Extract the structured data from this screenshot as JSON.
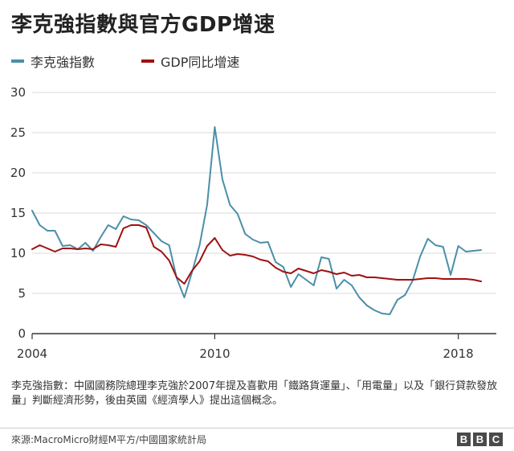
{
  "title": "李克強指數與官方GDP增速",
  "note": "李克強指數：中國國務院總理李克強於2007年提及喜歡用「鐵路貨運量」、「用電量」以及「銀行貸款發放量」判斷經濟形勢，後由英國《經濟學人》提出這個概念。",
  "source": "來源:MacroMicro財經M平方/中國國家統計局",
  "logo": [
    "B",
    "B",
    "C"
  ],
  "colors": {
    "li_index": "#4a8fa8",
    "gdp": "#a01010"
  },
  "chart_data": {
    "type": "line",
    "title": "李克強指數與官方GDP增速",
    "xlabel": "",
    "ylabel": "",
    "xlim": [
      2004,
      2019.25
    ],
    "ylim": [
      0,
      30
    ],
    "yticks": [
      0,
      5,
      10,
      15,
      20,
      25,
      30
    ],
    "xticks": [
      2004,
      2010,
      2018
    ],
    "xtick_labels": [
      "2004",
      "2010",
      "2018"
    ],
    "grid": true,
    "legend": "top-left",
    "series": [
      {
        "name": "李克強指數",
        "color": "#4a8fa8",
        "x": [
          2004.0,
          2004.25,
          2004.5,
          2004.75,
          2005.0,
          2005.25,
          2005.5,
          2005.75,
          2006.0,
          2006.25,
          2006.5,
          2006.75,
          2007.0,
          2007.25,
          2007.5,
          2007.75,
          2008.0,
          2008.25,
          2008.5,
          2008.75,
          2009.0,
          2009.25,
          2009.5,
          2009.75,
          2010.0,
          2010.25,
          2010.5,
          2010.75,
          2011.0,
          2011.25,
          2011.5,
          2011.75,
          2012.0,
          2012.25,
          2012.5,
          2012.75,
          2013.0,
          2013.25,
          2013.5,
          2013.75,
          2014.0,
          2014.25,
          2014.5,
          2014.75,
          2015.0,
          2015.25,
          2015.5,
          2015.75,
          2016.0,
          2016.25,
          2016.5,
          2016.75,
          2017.0,
          2017.25,
          2017.5,
          2017.75,
          2018.0,
          2018.25,
          2018.5,
          2018.75
        ],
        "values": [
          15.3,
          13.5,
          12.8,
          12.8,
          10.9,
          11.0,
          10.5,
          11.3,
          10.3,
          12.0,
          13.5,
          13.0,
          14.6,
          14.2,
          14.1,
          13.5,
          12.5,
          11.5,
          11.0,
          6.9,
          4.5,
          7.6,
          11.0,
          16.0,
          25.7,
          19.2,
          16.0,
          14.9,
          12.4,
          11.7,
          11.3,
          11.4,
          8.9,
          8.3,
          5.8,
          7.4,
          6.7,
          6.0,
          9.5,
          9.3,
          5.6,
          6.7,
          6.0,
          4.5,
          3.5,
          2.9,
          2.5,
          2.4,
          4.2,
          4.8,
          6.6,
          9.6,
          11.8,
          11.0,
          10.8,
          7.3,
          10.9,
          10.2,
          10.3,
          10.4
        ]
      },
      {
        "name": "GDP同比增速",
        "color": "#a01010",
        "x": [
          2004.0,
          2004.25,
          2004.5,
          2004.75,
          2005.0,
          2005.25,
          2005.5,
          2005.75,
          2006.0,
          2006.25,
          2006.5,
          2006.75,
          2007.0,
          2007.25,
          2007.5,
          2007.75,
          2008.0,
          2008.25,
          2008.5,
          2008.75,
          2009.0,
          2009.25,
          2009.5,
          2009.75,
          2010.0,
          2010.25,
          2010.5,
          2010.75,
          2011.0,
          2011.25,
          2011.5,
          2011.75,
          2012.0,
          2012.25,
          2012.5,
          2012.75,
          2013.0,
          2013.25,
          2013.5,
          2013.75,
          2014.0,
          2014.25,
          2014.5,
          2014.75,
          2015.0,
          2015.25,
          2015.5,
          2015.75,
          2016.0,
          2016.25,
          2016.5,
          2016.75,
          2017.0,
          2017.25,
          2017.5,
          2017.75,
          2018.0,
          2018.25,
          2018.5,
          2018.75
        ],
        "values": [
          10.5,
          11.0,
          10.6,
          10.2,
          10.6,
          10.6,
          10.5,
          10.6,
          10.5,
          11.1,
          11.0,
          10.8,
          13.1,
          13.5,
          13.5,
          13.2,
          10.8,
          10.2,
          9.1,
          7.0,
          6.2,
          7.8,
          9.0,
          10.9,
          11.9,
          10.4,
          9.7,
          9.9,
          9.8,
          9.6,
          9.2,
          9.0,
          8.2,
          7.7,
          7.5,
          8.1,
          7.8,
          7.5,
          7.9,
          7.7,
          7.4,
          7.6,
          7.2,
          7.3,
          7.0,
          7.0,
          6.9,
          6.8,
          6.7,
          6.7,
          6.7,
          6.8,
          6.9,
          6.9,
          6.8,
          6.8,
          6.8,
          6.8,
          6.7,
          6.5
        ]
      }
    ]
  }
}
